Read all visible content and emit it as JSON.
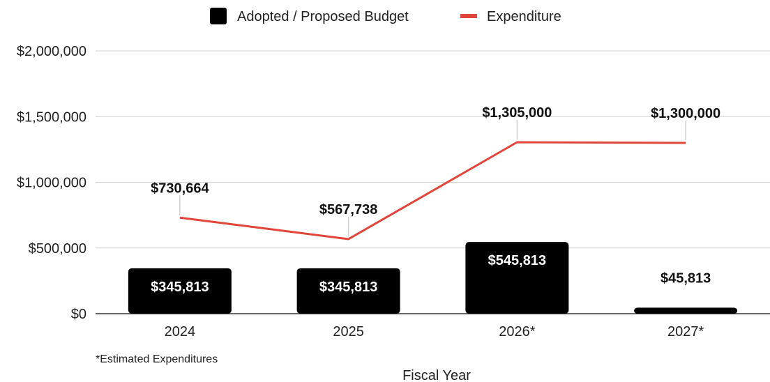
{
  "chart_data": {
    "type": "bar",
    "categories": [
      "2024",
      "2025",
      "2026*",
      "2027*"
    ],
    "series": [
      {
        "name": "Adopted / Proposed Budget",
        "kind": "bar",
        "color": "#000000",
        "values": [
          345813,
          345813,
          545813,
          45813
        ],
        "labels": [
          "$345,813",
          "$345,813",
          "$545,813",
          "$45,813"
        ]
      },
      {
        "name": "Expenditure",
        "kind": "line",
        "color": "#e2463a",
        "values": [
          730664,
          567738,
          1305000,
          1300000
        ],
        "labels": [
          "$730,664",
          "$567,738",
          "$1,305,000",
          "$1,300,000"
        ]
      }
    ],
    "xlabel": "Fiscal Year",
    "ylabel": "",
    "ylim": [
      0,
      2000000
    ],
    "yticks": [
      0,
      500000,
      1000000,
      1500000,
      2000000
    ],
    "ytick_labels": [
      "$0",
      "$500,000",
      "$1,000,000",
      "$1,500,000",
      "$2,000,000"
    ],
    "grid": true,
    "legend_position": "top-center",
    "footnote": "*Estimated Expenditures"
  }
}
